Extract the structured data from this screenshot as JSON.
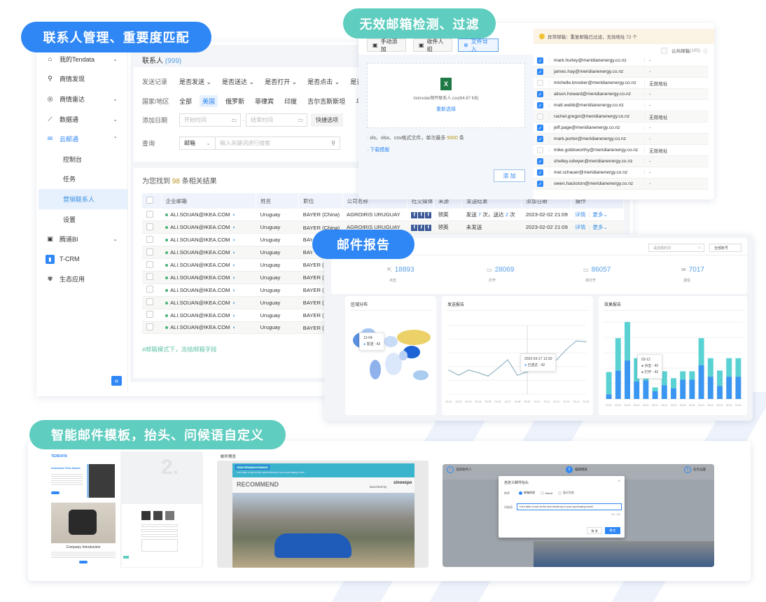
{
  "badges": {
    "contacts": "联系人管理、重要度匹配",
    "validation": "无效邮箱检测、过滤",
    "report": "邮件报告",
    "template": "智能邮件模板，抬头、问候语自定义"
  },
  "colors": {
    "accent_blue": "#2f87f5",
    "accent_teal": "#5fcdbf",
    "bar_blue": "#3a96f0",
    "bar_teal": "#5ad1d2",
    "map_yellow": "#ecd068"
  },
  "sidebar": {
    "items": [
      {
        "label": "我的Tendata",
        "icon": "home-icon",
        "chevron": "⌄"
      },
      {
        "label": "商情发现",
        "icon": "search-icon"
      },
      {
        "label": "商情雷达",
        "icon": "radar-icon",
        "chevron": "⌄"
      },
      {
        "label": "数据通",
        "icon": "chart-line-icon",
        "chevron": "⌄"
      },
      {
        "label": "云邮通",
        "icon": "mail-icon",
        "chevron": "⌃"
      }
    ],
    "subitems": [
      "控制台",
      "任务",
      "营销联系人",
      "设置"
    ],
    "items2": [
      {
        "label": "腾道BI",
        "icon": "bi-icon",
        "chevron": "⌄"
      },
      {
        "label": "T-CRM",
        "icon": "crm-icon"
      },
      {
        "label": "生态应用",
        "icon": "ecosystem-icon"
      }
    ],
    "collapse": "«"
  },
  "header": {
    "title": "联系人",
    "count": "(999)"
  },
  "filters": {
    "send_label": "发送记录",
    "send_options": [
      "是否发送 ⌄",
      "是否送达 ⌄",
      "是否打开 ⌄",
      "是否点击 ⌄",
      "是否"
    ],
    "country_label": "国家/地区",
    "countries": [
      "全部",
      "美国",
      "俄罗斯",
      "菲律宾",
      "印度",
      "吉尔吉斯斯坦",
      "乌"
    ],
    "date_label": "添加日期",
    "start_placeholder": "开始时间",
    "end_placeholder": "结束时间",
    "quick": "快捷选项",
    "query_label": "查询",
    "query_type": "邮箱",
    "query_placeholder": "输入关键词进行搜索"
  },
  "results": {
    "prefix": "为您找到",
    "count": "98",
    "suffix": "条相关结果",
    "columns": [
      "企业邮箱",
      "姓名",
      "职位",
      "公司名称",
      "社交媒体",
      "来源",
      "发送结果",
      "添加日期",
      "操作"
    ],
    "rows": [
      {
        "email": "ALI.SOUAN@IKEA.COM",
        "name": "Uruguay",
        "title": "BAYER (China)",
        "company": "AGROIRIS URUGUAY",
        "source": "领英",
        "result_pre": "发送 ",
        "sent": "7",
        "result_mid": " 次，送达 ",
        "delivered": "2",
        "result_post": " 次",
        "date": "2023-02-02  21:09",
        "detail": "详情",
        "more": "更多⌄"
      },
      {
        "email": "ALI.SOUAN@IKEA.COM",
        "name": "Uruguay",
        "title": "BAYER (China)",
        "company": "AGROIRIS URUGUAY",
        "source": "领英",
        "result_pre": "未发送",
        "sent": "",
        "result_mid": "",
        "delivered": "",
        "result_post": "",
        "date": "2023-02-02  21:09",
        "detail": "详情",
        "more": "更多⌄"
      },
      {
        "email": "ALI.SOUAN@IKEA.COM",
        "name": "Uruguay",
        "title": "BAYER (China)"
      },
      {
        "email": "ALI.SOUAN@IKEA.COM",
        "name": "Uruguay",
        "title": "BAYER (China)"
      },
      {
        "email": "ALI.SOUAN@IKEA.COM",
        "name": "Uruguay",
        "title": "BAYER (China)"
      },
      {
        "email": "ALI.SOUAN@IKEA.COM",
        "name": "Uruguay",
        "title": "BAYER (China)"
      },
      {
        "email": "ALI.SOUAN@IKEA.COM",
        "name": "Uruguay",
        "title": "BAYER (China)"
      },
      {
        "email": "ALI.SOUAN@IKEA.COM",
        "name": "Uruguay",
        "title": "BAYER (China)"
      },
      {
        "email": "ALI.SOUAN@IKEA.COM",
        "name": "Uruguay",
        "title": "BAYER (China)"
      },
      {
        "email": "ALI.SOUAN@IKEA.COM",
        "name": "Uruguay",
        "title": "BAYER (China)"
      }
    ],
    "hint": "#邮箱模式下，冻结邮箱字段"
  },
  "import": {
    "tabs": [
      "手动添加",
      "收件人组",
      "文件导入"
    ],
    "file_name": "rixinsolar邮件联系人.csv(64.67 KB)",
    "reselect": "重新选择",
    "format_pre": "xls、xlsx、csv格式文件，单次最多 ",
    "format_max": "5000",
    "format_post": " 条",
    "download": "下载模版",
    "add": "添 加",
    "warning": "异常邮箱：重复邮箱已过滤，无效地址 72 个",
    "public_label": "公共邮箱",
    "public_count": "(105)",
    "emails": [
      {
        "email": "mark.hurley@meridianenergy.co.nz",
        "status": "-",
        "checked": true
      },
      {
        "email": "james.hay@meridianenergy.co.nz",
        "status": "-",
        "checked": true
      },
      {
        "email": "michelle.brooker@meridianenergy.co.nz",
        "status": "无效地址",
        "checked": false
      },
      {
        "email": "alison.howard@meridianenergy.co.nz",
        "status": "-",
        "checked": true
      },
      {
        "email": "matt.webb@meridianenergy.co.nz",
        "status": "-",
        "checked": true
      },
      {
        "email": "rachel.gregor@meridianenergy.co.nz",
        "status": "无效地址",
        "checked": false
      },
      {
        "email": "jeff.page@meridianenergy.co.nz",
        "status": "-",
        "checked": true
      },
      {
        "email": "mark.porter@meridianenergy.co.nz",
        "status": "-",
        "checked": true
      },
      {
        "email": "mike.goldsworthy@meridianenergy.co.nz",
        "status": "无效地址",
        "checked": false
      },
      {
        "email": "shelley.odwyer@meridianenergy.co.nz",
        "status": "-",
        "checked": true
      },
      {
        "email": "mel.schauer@meridianenergy.co.nz",
        "status": "-",
        "checked": true
      },
      {
        "email": "owen.hackston@meridianenergy.co.nz",
        "status": "-",
        "checked": true
      }
    ]
  },
  "report": {
    "date_placeholder": "请选择时间",
    "account_select": "全部账号",
    "stats": [
      {
        "value": "18893",
        "label": "点击",
        "icon": "cursor-icon"
      },
      {
        "value": "28069",
        "label": "打开",
        "icon": "folder-open-icon"
      },
      {
        "value": "86057",
        "label": "未打开",
        "icon": "folder-icon"
      },
      {
        "value": "7017",
        "label": "退信",
        "icon": "mail-bounce-icon"
      }
    ],
    "map_title": "区域分布",
    "map_tip": {
      "date": "12-04",
      "label": "发送",
      "value": "42"
    },
    "line_title": "发送报告",
    "line_tip": {
      "date": "2022-03-17 12:30",
      "label": "已送达",
      "value": "42"
    },
    "bar_title": "效果报告",
    "bar_tip": {
      "date": "03-12",
      "label1": "点击",
      "value1": "42",
      "label2": "打开",
      "value2": "42"
    }
  },
  "chart_data": [
    {
      "type": "line",
      "title": "发送报告",
      "categories": [
        "03-01",
        "03-02",
        "03-03",
        "03-04",
        "03-05",
        "03-06",
        "03-07",
        "03-08",
        "03-09",
        "03-10",
        "03-11",
        "03-12",
        "03-13",
        "03-14",
        "03-15"
      ],
      "values": [
        28,
        22,
        28,
        25,
        21,
        30,
        40,
        22,
        26,
        29,
        33,
        40,
        52,
        62,
        61
      ],
      "grid": true
    },
    {
      "type": "bar",
      "stacked": true,
      "title": "效果报告",
      "categories": [
        "03-01",
        "03-01",
        "03-01",
        "03-01",
        "03-01",
        "03-01",
        "03-01",
        "03-01",
        "03-01",
        "03-01",
        "03-01",
        "03-01",
        "03-01",
        "03-01",
        "03-01"
      ],
      "series": [
        {
          "name": "打开",
          "values": [
            6,
            37,
            50,
            23,
            24,
            10,
            18,
            14,
            25,
            25,
            44,
            29,
            17,
            29,
            29
          ]
        },
        {
          "name": "点击",
          "values": [
            29,
            42,
            50,
            30,
            29,
            5,
            18,
            13,
            11,
            11,
            35,
            24,
            20,
            24,
            24
          ]
        }
      ],
      "grid": true
    }
  ],
  "templates": {
    "logo": "TENDATA",
    "product_title": "Automotive Parts Models",
    "company_intro": "Company Introduction",
    "step_number": "2.",
    "preview_title": "邮件预览",
    "greeting": "Dear #Recipient Name#",
    "subline": "Let's take a look at the new tendency in your purchasing circle!",
    "recommend": "RECOMMEND",
    "launched_by": "launched by",
    "brand": "sinoexpo",
    "steps": [
      "选择收件人",
      "编辑模板",
      "任务设置"
    ],
    "dialog_title": "自定义邮件抬头",
    "salutation_label": "称呼",
    "salutation_options": [
      "邮箱前缀",
      "friend",
      "显示为空"
    ],
    "greeting_label": "问候语",
    "greeting_value": "Let's take a look at the new tendency in your purchasing circle!",
    "char_count": "64 / 100",
    "cancel": "取 消",
    "confirm": "确 定"
  }
}
